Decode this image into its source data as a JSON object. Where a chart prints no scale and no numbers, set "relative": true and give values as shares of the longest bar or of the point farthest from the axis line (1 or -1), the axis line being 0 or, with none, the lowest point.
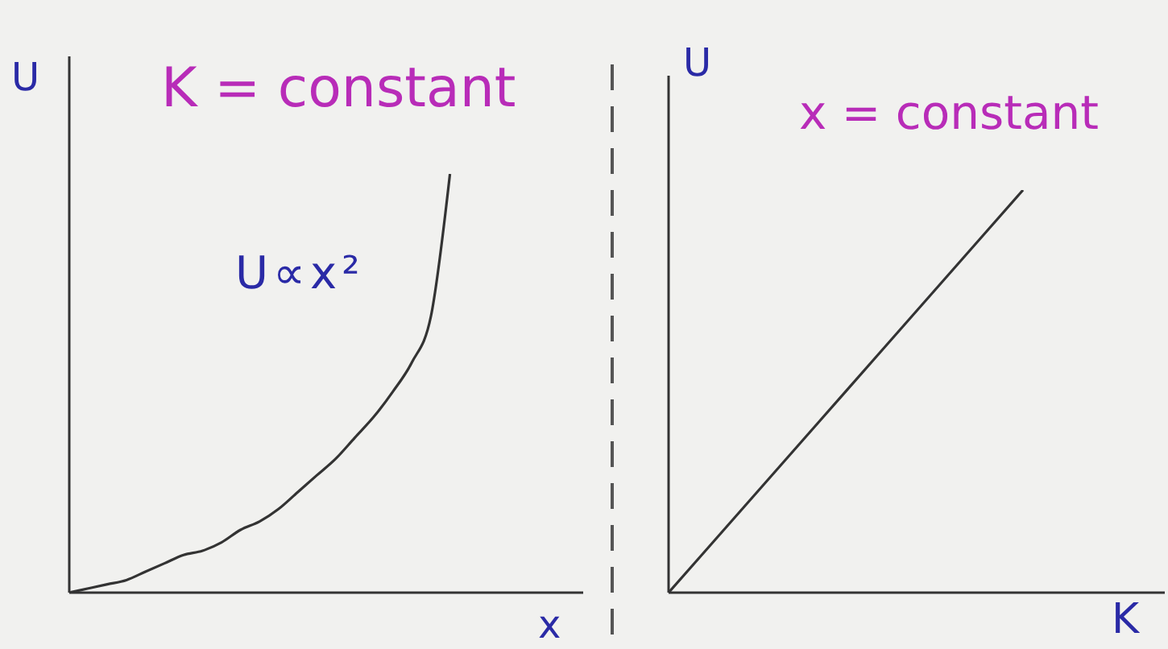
{
  "chart_data": [
    {
      "type": "line",
      "title": "K = constant",
      "xlabel": "x",
      "ylabel": "U",
      "annotations": [
        "U∝x²"
      ],
      "relative": true,
      "color": "#333333",
      "categories": [
        null,
        null,
        null,
        null,
        null,
        null,
        null,
        null,
        null,
        null,
        null,
        null,
        null,
        null,
        null,
        null,
        null,
        null,
        null,
        null,
        null,
        null,
        null,
        null,
        null,
        null,
        null,
        null
      ],
      "values": [
        0,
        0.01,
        0.02,
        0.03,
        0.05,
        0.07,
        0.09,
        0.1,
        0.12,
        0.15,
        0.17,
        0.2,
        0.24,
        0.28,
        0.32,
        0.37,
        0.42,
        0.48,
        0.55,
        0.66,
        1,
        null,
        null,
        null,
        null,
        null,
        null,
        null
      ]
    },
    {
      "type": "line",
      "title": "x = constant",
      "xlabel": "K",
      "ylabel": "U",
      "relative": true,
      "color": "#333333",
      "categories": [
        null,
        null,
        null,
        null,
        null,
        null,
        null,
        null
      ],
      "values": [
        0,
        0.2,
        0.4,
        0.6,
        0.8,
        1,
        null,
        null
      ]
    }
  ]
}
